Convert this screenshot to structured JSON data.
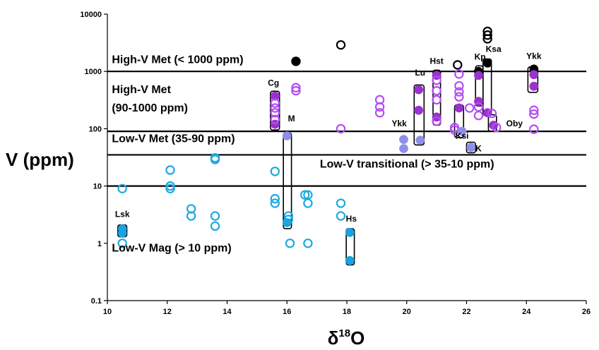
{
  "chart_data": {
    "type": "scatter",
    "title": "",
    "xlabel_base": "δ",
    "xlabel_sup": "18",
    "xlabel_tail": "O",
    "ylabel": "V (ppm)",
    "xlim": [
      10,
      26
    ],
    "ylim": [
      0.1,
      10000
    ],
    "y_scale": "log",
    "grid": false,
    "x_ticks": [
      10,
      12,
      14,
      16,
      18,
      20,
      22,
      24,
      26
    ],
    "y_ticks": [
      {
        "value": 0.1,
        "label": "0.1"
      },
      {
        "value": 1,
        "label": "1"
      },
      {
        "value": 10,
        "label": "10"
      },
      {
        "value": 100,
        "label": "100"
      },
      {
        "value": 1000,
        "label": "1000"
      },
      {
        "value": 10000,
        "label": "10000"
      }
    ],
    "colors": {
      "black": "#000000",
      "purple": "#b44ff2",
      "purple_fill": "#9933cc",
      "lavender": "#8f8fe8",
      "cyan": "#1fa9e1",
      "cyan_fill": "#19a2dc"
    },
    "threshold_lines": [
      {
        "y": 1000
      },
      {
        "y": 90
      },
      {
        "y": 35
      },
      {
        "y": 10
      }
    ],
    "annotations": [
      {
        "text": "High-V Met (< 1000 ppm)",
        "x": 10.15,
        "y": 1400
      },
      {
        "text": "High-V Met",
        "x": 10.15,
        "y": 420
      },
      {
        "text": "(90-1000 ppm)",
        "x": 10.15,
        "y": 200
      },
      {
        "text": "Low-V Met (35-90 ppm)",
        "x": 10.15,
        "y": 58
      },
      {
        "text": "Low-V transitional (> 35-10 ppm)",
        "x": 17.1,
        "y": 21
      },
      {
        "text": "Low-V Mag (> 10 ppm)",
        "x": 10.15,
        "y": 0.72
      }
    ],
    "group_labels": [
      {
        "text": "Lsk",
        "x": 10.5,
        "y": 2.9
      },
      {
        "text": "Cg",
        "x": 15.55,
        "y": 560
      },
      {
        "text": "M",
        "x": 16.15,
        "y": 135
      },
      {
        "text": "Ykk",
        "x": 19.75,
        "y": 110
      },
      {
        "text": "Lu",
        "x": 20.45,
        "y": 850
      },
      {
        "text": "Hst",
        "x": 21.0,
        "y": 1350
      },
      {
        "text": "Kp",
        "x": 22.45,
        "y": 1600
      },
      {
        "text": "Ksa",
        "x": 22.9,
        "y": 2200
      },
      {
        "text": "Ykk",
        "x": 24.25,
        "y": 1650
      },
      {
        "text": "Oby",
        "x": 23.6,
        "y": 110
      },
      {
        "text": "Ksi",
        "x": 21.85,
        "y": 67
      },
      {
        "text": "K",
        "x": 22.4,
        "y": 40
      },
      {
        "text": "Hs",
        "x": 18.15,
        "y": 2.4
      }
    ],
    "group_boxes": [
      {
        "x": [
          10.35,
          10.65
        ],
        "y": [
          1.3,
          2.1
        ]
      },
      {
        "x": [
          15.45,
          15.75
        ],
        "y": [
          95,
          450
        ]
      },
      {
        "x": [
          15.88,
          16.15
        ],
        "y": [
          1.8,
          85
        ]
      },
      {
        "x": [
          17.98,
          18.25
        ],
        "y": [
          0.42,
          1.8
        ]
      },
      {
        "x": [
          20.25,
          20.58
        ],
        "y": [
          52,
          580
        ]
      },
      {
        "x": [
          20.88,
          21.13
        ],
        "y": [
          115,
          1050
        ]
      },
      {
        "x": [
          21.6,
          21.9
        ],
        "y": [
          70,
          260
        ]
      },
      {
        "x": [
          22.0,
          22.3
        ],
        "y": [
          38,
          58
        ]
      },
      {
        "x": [
          22.3,
          22.55
        ],
        "y": [
          250,
          1250
        ]
      },
      {
        "x": [
          22.55,
          22.83
        ],
        "y": [
          170,
          1650
        ]
      },
      {
        "x": [
          22.73,
          23.0
        ],
        "y": [
          90,
          175
        ]
      },
      {
        "x": [
          24.05,
          24.38
        ],
        "y": [
          430,
          1200
        ]
      }
    ],
    "series": [
      {
        "color": "black",
        "filled": true,
        "points": [
          [
            16.3,
            1500
          ],
          [
            22.4,
            1000
          ],
          [
            22.7,
            1400
          ],
          [
            24.25,
            1100
          ]
        ]
      },
      {
        "color": "black",
        "filled": false,
        "points": [
          [
            16.3,
            1500
          ],
          [
            17.8,
            2900
          ],
          [
            21.7,
            1300
          ],
          [
            22.7,
            5000
          ],
          [
            22.7,
            4300
          ],
          [
            22.7,
            3700
          ]
        ]
      },
      {
        "color": "purple",
        "filled": true,
        "points": [
          [
            15.6,
            370
          ],
          [
            15.6,
            120
          ],
          [
            20.4,
            480
          ],
          [
            20.4,
            210
          ],
          [
            21.0,
            850
          ],
          [
            21.0,
            160
          ],
          [
            21.75,
            230
          ],
          [
            22.4,
            850
          ],
          [
            22.4,
            300
          ],
          [
            22.7,
            190
          ],
          [
            22.9,
            115
          ],
          [
            24.25,
            880
          ],
          [
            24.25,
            550
          ]
        ]
      },
      {
        "color": "purple",
        "filled": false,
        "points": [
          [
            15.6,
            280
          ],
          [
            15.6,
            230
          ],
          [
            15.6,
            190
          ],
          [
            15.6,
            145
          ],
          [
            16.3,
            520
          ],
          [
            16.3,
            460
          ],
          [
            17.8,
            100
          ],
          [
            19.1,
            320
          ],
          [
            19.1,
            240
          ],
          [
            19.1,
            190
          ],
          [
            21.0,
            700
          ],
          [
            21.0,
            460
          ],
          [
            21.0,
            320
          ],
          [
            21.0,
            135
          ],
          [
            21.75,
            900
          ],
          [
            21.75,
            560
          ],
          [
            21.75,
            440
          ],
          [
            21.75,
            360
          ],
          [
            21.6,
            105
          ],
          [
            21.6,
            95
          ],
          [
            22.1,
            230
          ],
          [
            22.4,
            240
          ],
          [
            22.4,
            170
          ],
          [
            22.85,
            185
          ],
          [
            23.0,
            105
          ],
          [
            24.25,
            210
          ],
          [
            24.25,
            180
          ],
          [
            24.25,
            98
          ]
        ]
      },
      {
        "color": "lavender",
        "filled": true,
        "points": [
          [
            16.0,
            75
          ],
          [
            19.9,
            65
          ],
          [
            19.9,
            45
          ],
          [
            20.45,
            63
          ],
          [
            21.85,
            90
          ],
          [
            22.15,
            47
          ]
        ]
      },
      {
        "color": "cyan",
        "filled": true,
        "points": [
          [
            10.5,
            1.8
          ],
          [
            10.5,
            1.5
          ],
          [
            16.0,
            2.3
          ],
          [
            18.1,
            1.55
          ],
          [
            18.1,
            0.5
          ]
        ]
      },
      {
        "color": "cyan",
        "filled": false,
        "points": [
          [
            10.5,
            9
          ],
          [
            10.5,
            1.0
          ],
          [
            12.1,
            19
          ],
          [
            12.1,
            10
          ],
          [
            12.1,
            9
          ],
          [
            12.8,
            4
          ],
          [
            12.8,
            3
          ],
          [
            13.6,
            31
          ],
          [
            13.6,
            29
          ],
          [
            13.6,
            3
          ],
          [
            13.6,
            2
          ],
          [
            15.6,
            18
          ],
          [
            15.6,
            6
          ],
          [
            15.6,
            5
          ],
          [
            16.05,
            3
          ],
          [
            16.05,
            2.6
          ],
          [
            16.1,
            1.0
          ],
          [
            16.6,
            7
          ],
          [
            16.7,
            7
          ],
          [
            16.7,
            5
          ],
          [
            16.7,
            1.0
          ],
          [
            17.8,
            5
          ],
          [
            17.8,
            3
          ]
        ]
      }
    ]
  }
}
